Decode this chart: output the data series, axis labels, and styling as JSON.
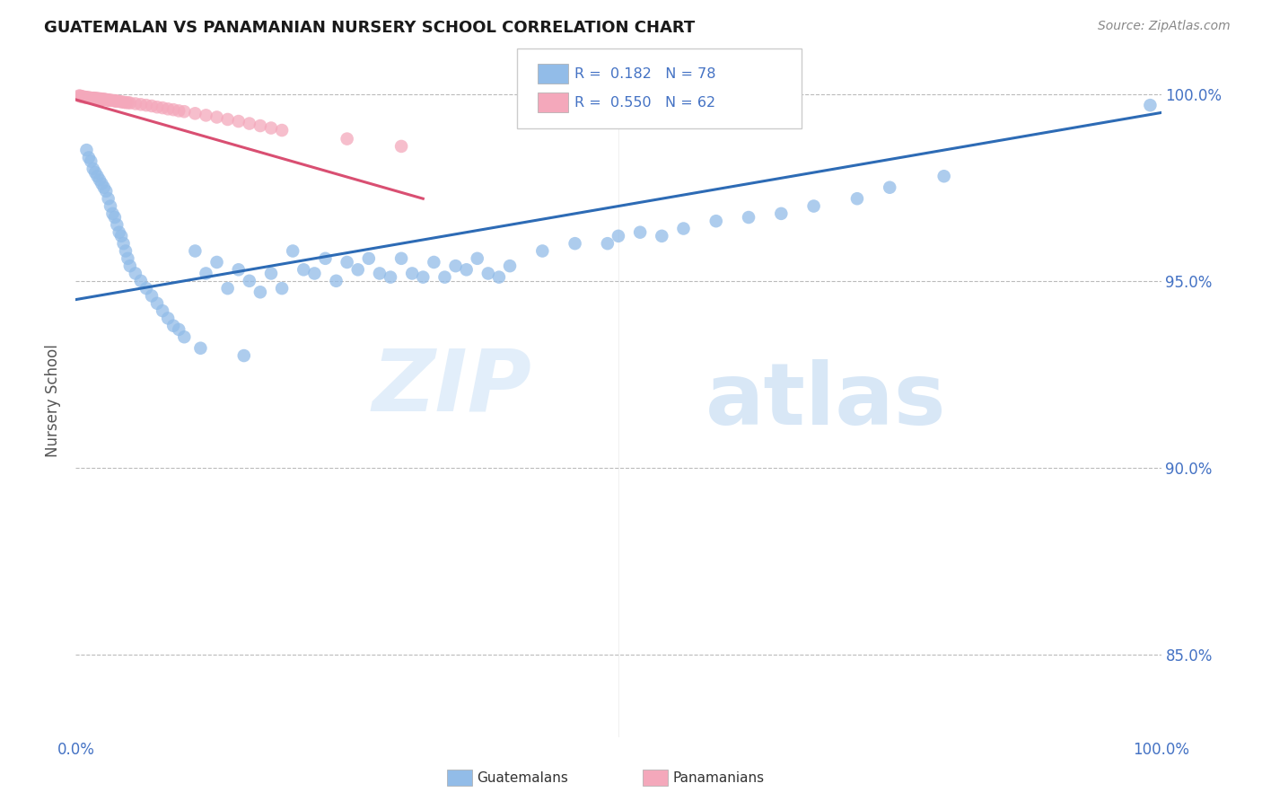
{
  "title": "GUATEMALAN VS PANAMANIAN NURSERY SCHOOL CORRELATION CHART",
  "source": "Source: ZipAtlas.com",
  "ylabel": "Nursery School",
  "xlim": [
    0.0,
    1.0
  ],
  "ylim": [
    0.828,
    1.008
  ],
  "yticks": [
    0.85,
    0.9,
    0.95,
    1.0
  ],
  "ytick_labels": [
    "85.0%",
    "90.0%",
    "95.0%",
    "100.0%"
  ],
  "blue_color": "#92bce8",
  "pink_color": "#f4a8bb",
  "trend_blue": "#2d6bb5",
  "trend_pink": "#d94f72",
  "blue_scatter_x": [
    0.01,
    0.012,
    0.014,
    0.016,
    0.018,
    0.02,
    0.022,
    0.024,
    0.026,
    0.028,
    0.03,
    0.032,
    0.034,
    0.036,
    0.038,
    0.04,
    0.042,
    0.044,
    0.046,
    0.048,
    0.05,
    0.055,
    0.06,
    0.065,
    0.07,
    0.075,
    0.08,
    0.085,
    0.09,
    0.095,
    0.1,
    0.11,
    0.115,
    0.12,
    0.13,
    0.14,
    0.15,
    0.155,
    0.16,
    0.17,
    0.18,
    0.19,
    0.2,
    0.21,
    0.22,
    0.23,
    0.24,
    0.25,
    0.26,
    0.27,
    0.28,
    0.29,
    0.3,
    0.31,
    0.32,
    0.33,
    0.34,
    0.35,
    0.36,
    0.37,
    0.38,
    0.39,
    0.4,
    0.43,
    0.46,
    0.49,
    0.5,
    0.52,
    0.54,
    0.56,
    0.59,
    0.62,
    0.65,
    0.68,
    0.72,
    0.75,
    0.8,
    0.99
  ],
  "blue_scatter_y": [
    0.985,
    0.983,
    0.982,
    0.98,
    0.979,
    0.978,
    0.977,
    0.976,
    0.975,
    0.974,
    0.972,
    0.97,
    0.968,
    0.967,
    0.965,
    0.963,
    0.962,
    0.96,
    0.958,
    0.956,
    0.954,
    0.952,
    0.95,
    0.948,
    0.946,
    0.944,
    0.942,
    0.94,
    0.938,
    0.937,
    0.935,
    0.958,
    0.932,
    0.952,
    0.955,
    0.948,
    0.953,
    0.93,
    0.95,
    0.947,
    0.952,
    0.948,
    0.958,
    0.953,
    0.952,
    0.956,
    0.95,
    0.955,
    0.953,
    0.956,
    0.952,
    0.951,
    0.956,
    0.952,
    0.951,
    0.955,
    0.951,
    0.954,
    0.953,
    0.956,
    0.952,
    0.951,
    0.954,
    0.958,
    0.96,
    0.96,
    0.962,
    0.963,
    0.962,
    0.964,
    0.966,
    0.967,
    0.968,
    0.97,
    0.972,
    0.975,
    0.978,
    0.997
  ],
  "pink_scatter_x": [
    0.003,
    0.004,
    0.005,
    0.006,
    0.007,
    0.008,
    0.009,
    0.01,
    0.011,
    0.012,
    0.013,
    0.014,
    0.015,
    0.016,
    0.017,
    0.018,
    0.019,
    0.02,
    0.021,
    0.022,
    0.023,
    0.024,
    0.025,
    0.026,
    0.027,
    0.028,
    0.029,
    0.03,
    0.031,
    0.032,
    0.033,
    0.035,
    0.036,
    0.037,
    0.038,
    0.04,
    0.042,
    0.044,
    0.046,
    0.048,
    0.05,
    0.055,
    0.06,
    0.065,
    0.07,
    0.075,
    0.08,
    0.085,
    0.09,
    0.095,
    0.1,
    0.11,
    0.12,
    0.13,
    0.14,
    0.15,
    0.16,
    0.17,
    0.18,
    0.19,
    0.25,
    0.3
  ],
  "pink_scatter_y": [
    0.9995,
    0.9995,
    0.9993,
    0.9993,
    0.9992,
    0.9992,
    0.9991,
    0.9991,
    0.999,
    0.999,
    0.999,
    0.9989,
    0.9989,
    0.9989,
    0.9989,
    0.9988,
    0.9988,
    0.9988,
    0.9987,
    0.9987,
    0.9987,
    0.9986,
    0.9986,
    0.9986,
    0.9985,
    0.9985,
    0.9984,
    0.9984,
    0.9983,
    0.9983,
    0.9983,
    0.9982,
    0.9982,
    0.9981,
    0.9981,
    0.998,
    0.9979,
    0.9978,
    0.9977,
    0.9977,
    0.9976,
    0.9974,
    0.9972,
    0.997,
    0.9968,
    0.9965,
    0.9963,
    0.996,
    0.9958,
    0.9955,
    0.9953,
    0.9948,
    0.9943,
    0.9938,
    0.9932,
    0.9927,
    0.9921,
    0.9915,
    0.9909,
    0.9903,
    0.988,
    0.986
  ],
  "blue_trend_x": [
    0.0,
    1.0
  ],
  "blue_trend_y": [
    0.945,
    0.995
  ],
  "pink_trend_x": [
    0.0,
    0.32
  ],
  "pink_trend_y": [
    0.9985,
    0.972
  ],
  "watermark_zip": "ZIP",
  "watermark_atlas": "atlas",
  "grid_color": "#bbbbbb",
  "background_color": "#ffffff"
}
